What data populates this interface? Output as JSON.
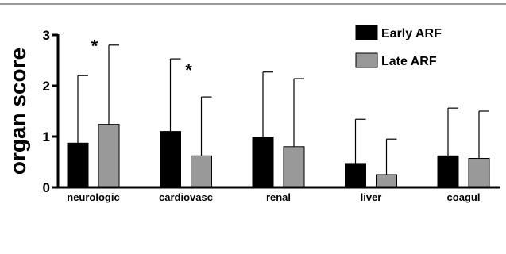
{
  "chart_data": {
    "type": "bar",
    "ylabel": "organ score",
    "ylim": [
      0,
      3
    ],
    "yticks": [
      0,
      1,
      2,
      3
    ],
    "categories": [
      "neurologic",
      "cardiovasc",
      "renal",
      "liver",
      "coagul"
    ],
    "series": [
      {
        "name": "Early ARF",
        "color": "#000000",
        "values": [
          0.87,
          1.1,
          0.99,
          0.47,
          0.62
        ],
        "errors": [
          2.2,
          2.53,
          2.27,
          1.34,
          1.56
        ]
      },
      {
        "name": "Late ARF",
        "color": "#999999",
        "values": [
          1.24,
          0.62,
          0.8,
          0.25,
          0.57
        ],
        "errors": [
          2.8,
          1.78,
          2.14,
          0.95,
          1.5
        ]
      }
    ],
    "annotations": [
      {
        "text": "*",
        "category": "neurologic",
        "y": 2.9
      },
      {
        "text": "*",
        "category": "cardiovasc",
        "y": 2.42
      }
    ],
    "legend": "top-right",
    "grid": false
  }
}
